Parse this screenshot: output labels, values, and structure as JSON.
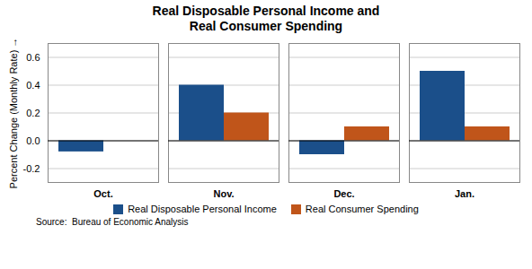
{
  "chart_data": {
    "type": "bar",
    "title": "Real Disposable Personal Income and\nReal Consumer Spending",
    "ylabel": "Percent Change (Monthly Rate)",
    "annotations": [
      "Source:  Bureau of Economic Analysis"
    ],
    "categories": [
      "Oct.",
      "Nov.",
      "Dec.",
      "Jan."
    ],
    "series": [
      {
        "name": "Real Disposable Personal Income",
        "color": "#1B4F8A",
        "values": [
          -0.08,
          0.4,
          -0.1,
          0.5
        ]
      },
      {
        "name": "Real Consumer Spending",
        "color": "#C0551A",
        "values": [
          0.0,
          0.2,
          0.1,
          0.1
        ]
      }
    ],
    "ylim": [
      -0.3,
      0.7
    ],
    "yticks": [
      -0.2,
      {
        "value": 0,
        "label": "0.0"
      },
      0.2,
      0.4,
      0.6
    ],
    "grid": true,
    "legend": "bottom"
  }
}
